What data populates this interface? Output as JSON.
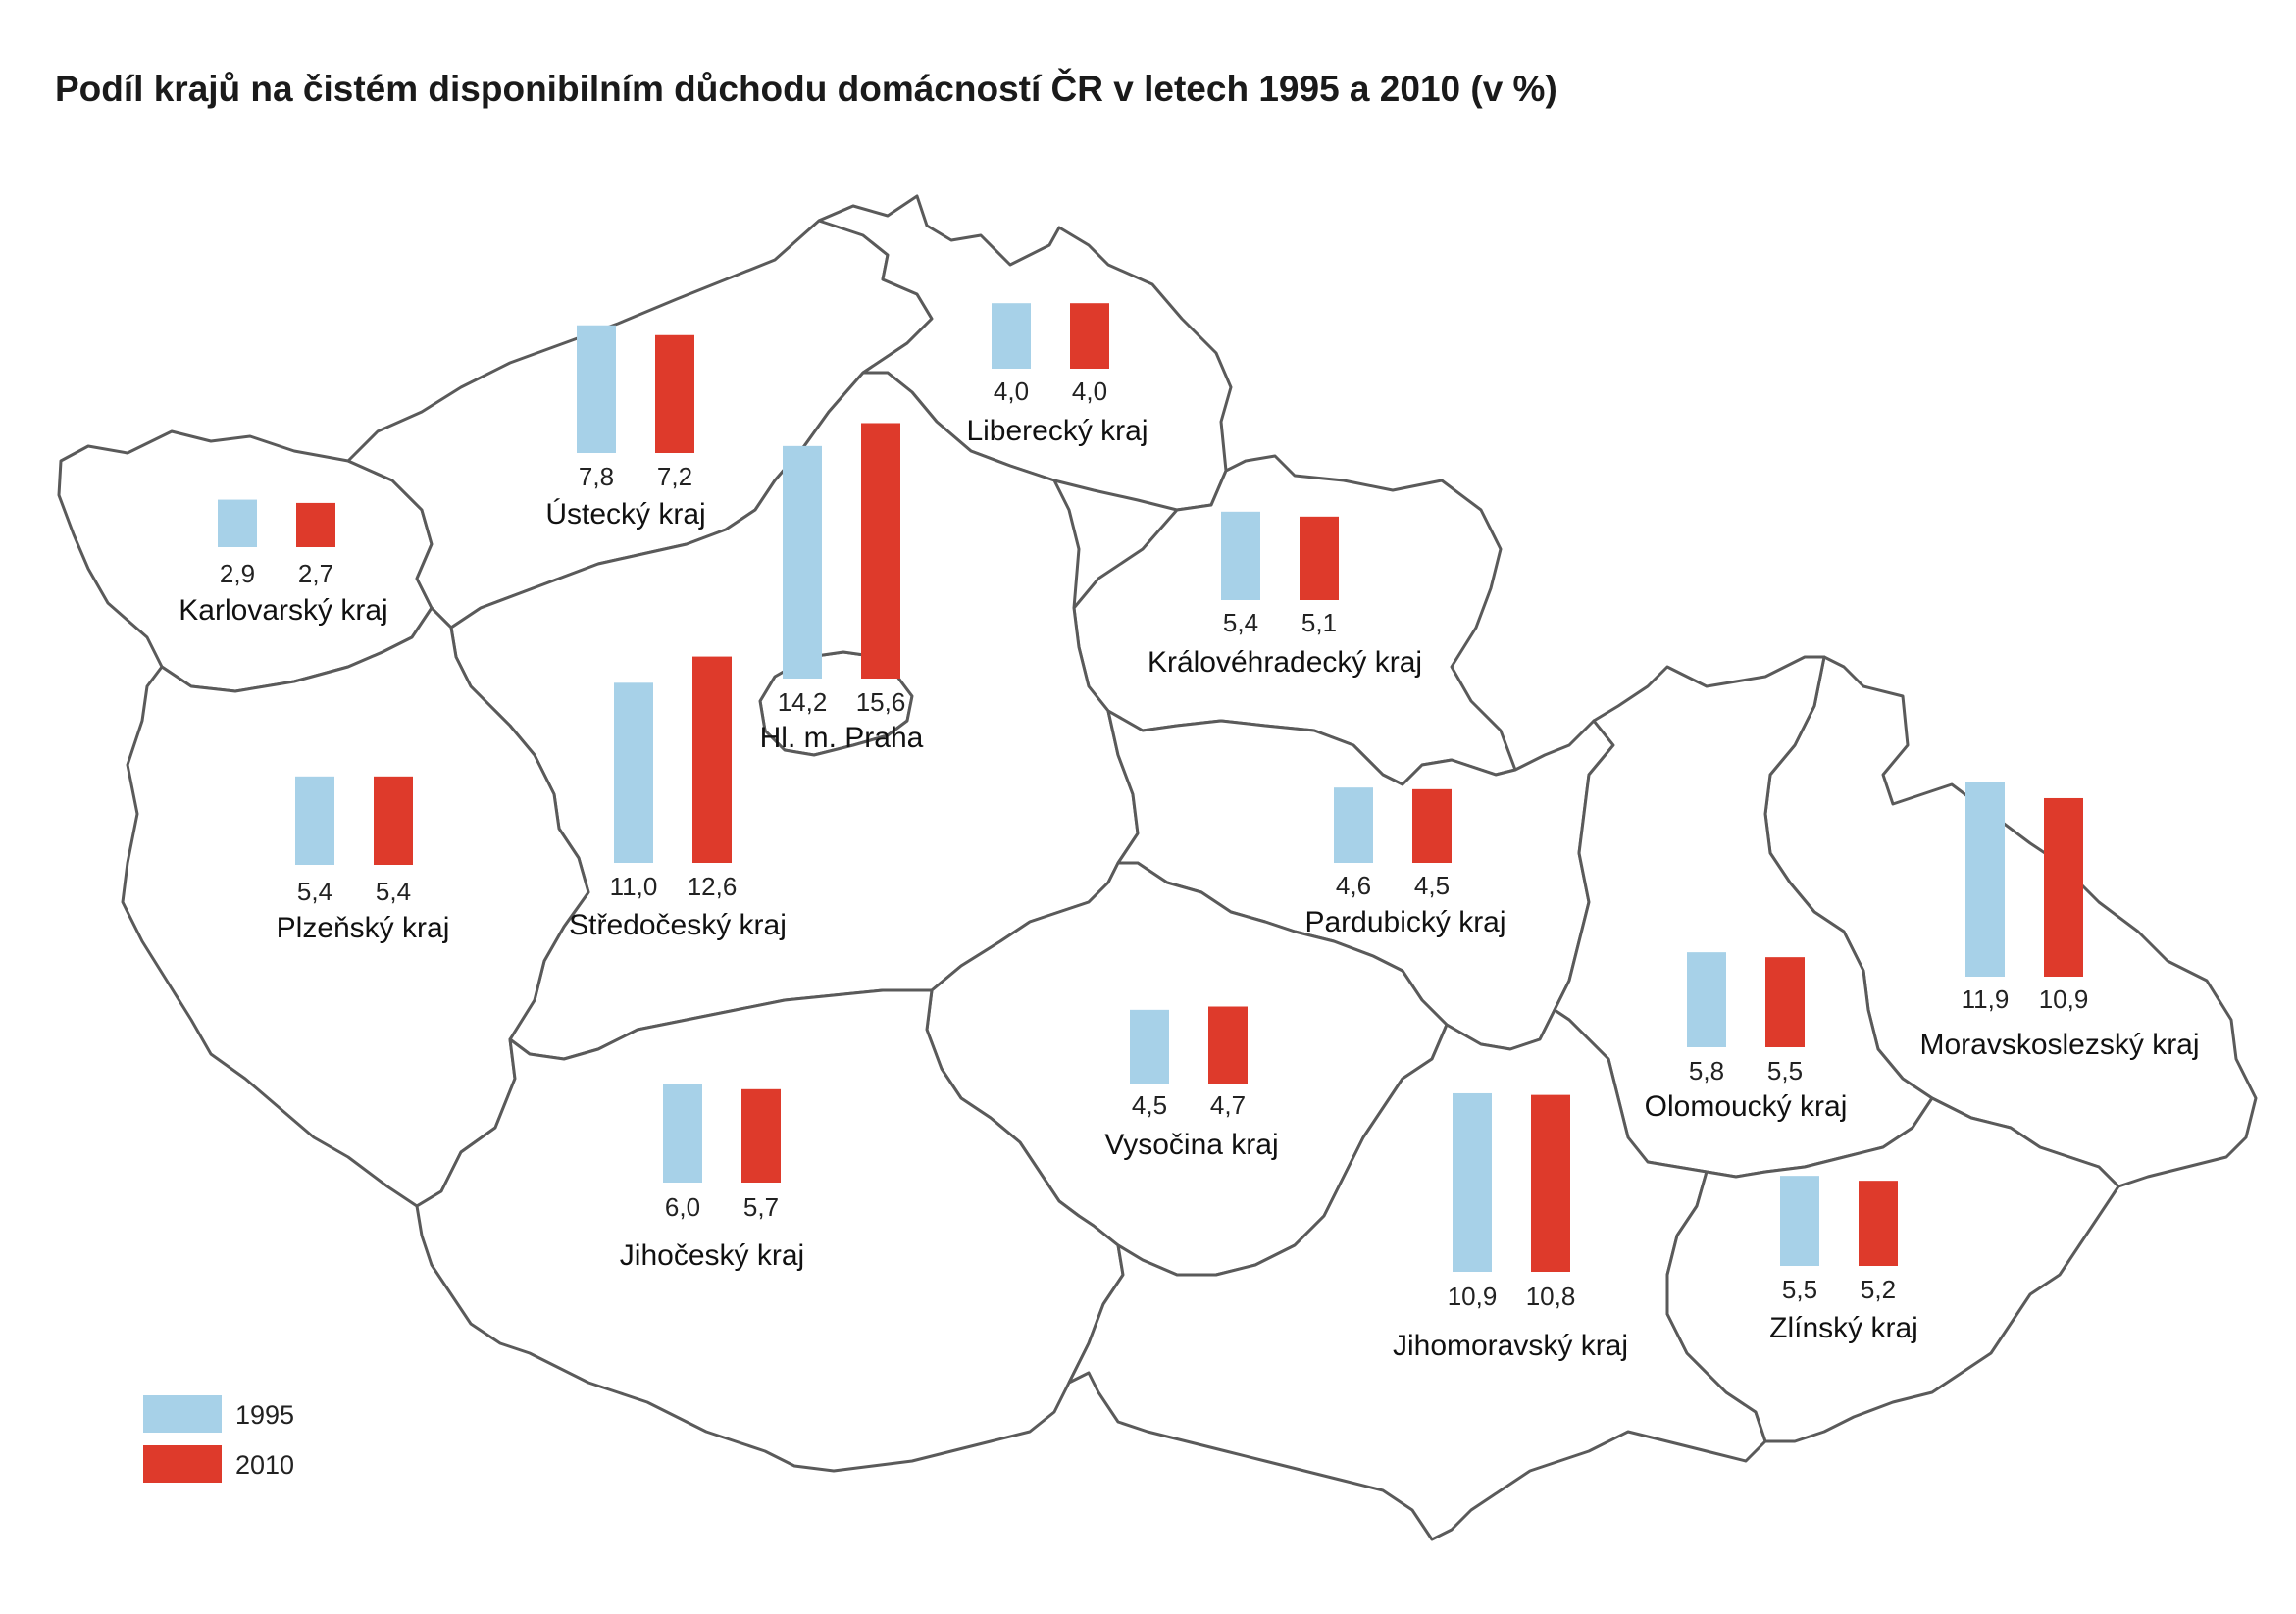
{
  "title": "Podíl krajů na čistém disponibilním důchodu domácností ČR v letech 1995 a 2010 (v %)",
  "colors": {
    "y1995": "#a7d1e8",
    "y2010": "#de3a2b",
    "border": "#5a5a5a"
  },
  "legend": [
    {
      "label": "1995",
      "color": "#a7d1e8"
    },
    {
      "label": "2010",
      "color": "#de3a2b"
    }
  ],
  "chart_data": {
    "type": "bar",
    "series": [
      {
        "name": "1995",
        "values": [
          7.8,
          2.9,
          14.2,
          4.0,
          5.4,
          5.4,
          11.0,
          4.6,
          11.9,
          5.8,
          4.5,
          6.0,
          10.9,
          5.5
        ]
      },
      {
        "name": "2010",
        "values": [
          7.2,
          2.7,
          15.6,
          4.0,
          5.1,
          5.4,
          12.6,
          4.5,
          10.9,
          5.5,
          4.7,
          5.7,
          10.8,
          5.2
        ]
      }
    ],
    "regions": [
      {
        "name": "Ústecký kraj",
        "v1995": 7.8,
        "v2010": 7.2,
        "l1995": "7,8",
        "l2010": "7,2"
      },
      {
        "name": "Karlovarský kraj",
        "v1995": 2.9,
        "v2010": 2.7,
        "l1995": "2,9",
        "l2010": "2,7"
      },
      {
        "name": "Hl. m. Praha",
        "v1995": 14.2,
        "v2010": 15.6,
        "l1995": "14,2",
        "l2010": "15,6"
      },
      {
        "name": "Liberecký kraj",
        "v1995": 4.0,
        "v2010": 4.0,
        "l1995": "4,0",
        "l2010": "4,0"
      },
      {
        "name": "Královéhradecký kraj",
        "v1995": 5.4,
        "v2010": 5.1,
        "l1995": "5,4",
        "l2010": "5,1"
      },
      {
        "name": "Plzeňský kraj",
        "v1995": 5.4,
        "v2010": 5.4,
        "l1995": "5,4",
        "l2010": "5,4"
      },
      {
        "name": "Středočeský kraj",
        "v1995": 11.0,
        "v2010": 12.6,
        "l1995": "11,0",
        "l2010": "12,6"
      },
      {
        "name": "Pardubický kraj",
        "v1995": 4.6,
        "v2010": 4.5,
        "l1995": "4,6",
        "l2010": "4,5"
      },
      {
        "name": "Moravskoslezský kraj",
        "v1995": 11.9,
        "v2010": 10.9,
        "l1995": "11,9",
        "l2010": "10,9"
      },
      {
        "name": "Olomoucký kraj",
        "v1995": 5.8,
        "v2010": 5.5,
        "l1995": "5,8",
        "l2010": "5,5"
      },
      {
        "name": "Vysočina kraj",
        "v1995": 4.5,
        "v2010": 4.7,
        "l1995": "4,5",
        "l2010": "4,7"
      },
      {
        "name": "Jihočeský kraj",
        "v1995": 6.0,
        "v2010": 5.7,
        "l1995": "6,0",
        "l2010": "5,7"
      },
      {
        "name": "Jihomoravský kraj",
        "v1995": 10.9,
        "v2010": 10.8,
        "l1995": "10,9",
        "l2010": "10,8"
      },
      {
        "name": "Zlínský kraj",
        "v1995": 5.5,
        "v2010": 5.2,
        "l1995": "5,5",
        "l2010": "5,2"
      }
    ]
  }
}
